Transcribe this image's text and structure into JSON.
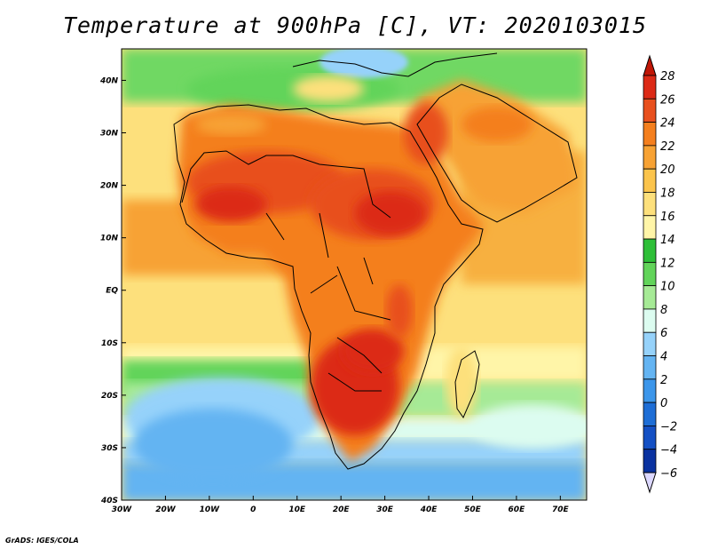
{
  "title": "Temperature at 900hPa [C], VT: 2020103015",
  "credit": "GrADS: IGES/COLA",
  "map": {
    "lon_range": [
      -30,
      76
    ],
    "lat_range": [
      -40,
      46
    ],
    "lon_ticks": [
      {
        "value": -30,
        "label": "30W"
      },
      {
        "value": -20,
        "label": "20W"
      },
      {
        "value": -10,
        "label": "10W"
      },
      {
        "value": 0,
        "label": "0"
      },
      {
        "value": 10,
        "label": "10E"
      },
      {
        "value": 20,
        "label": "20E"
      },
      {
        "value": 30,
        "label": "30E"
      },
      {
        "value": 40,
        "label": "40E"
      },
      {
        "value": 50,
        "label": "50E"
      },
      {
        "value": 60,
        "label": "60E"
      },
      {
        "value": 70,
        "label": "70E"
      }
    ],
    "lat_ticks": [
      {
        "value": 40,
        "label": "40N"
      },
      {
        "value": 30,
        "label": "30N"
      },
      {
        "value": 20,
        "label": "20N"
      },
      {
        "value": 10,
        "label": "10N"
      },
      {
        "value": 0,
        "label": "EQ"
      },
      {
        "value": -10,
        "label": "10S"
      },
      {
        "value": -20,
        "label": "20S"
      },
      {
        "value": -30,
        "label": "30S"
      },
      {
        "value": -40,
        "label": "40S"
      }
    ]
  },
  "colorbar": {
    "levels": [
      28,
      26,
      24,
      22,
      20,
      18,
      16,
      14,
      12,
      10,
      8,
      6,
      4,
      2,
      0,
      -2,
      -4,
      -6
    ],
    "labels": [
      "28",
      "26",
      "24",
      "22",
      "20",
      "18",
      "16",
      "14",
      "12",
      "10",
      "8",
      "6",
      "4",
      "2",
      "0",
      "−2",
      "−4",
      "−6"
    ],
    "colors": [
      "#dc2a16",
      "#e8501e",
      "#f47f1e",
      "#f7a234",
      "#fbc44c",
      "#fde07c",
      "#fff5a8",
      "#2ebf38",
      "#62d45a",
      "#a6ea96",
      "#dcfcf0",
      "#96d2fa",
      "#64b4f2",
      "#3c96ea",
      "#1e6ed6",
      "#1450c4",
      "#0a32a0",
      "#1c1c70"
    ],
    "top_color": "#c01606",
    "bottom_color": "#dcd8ff"
  }
}
